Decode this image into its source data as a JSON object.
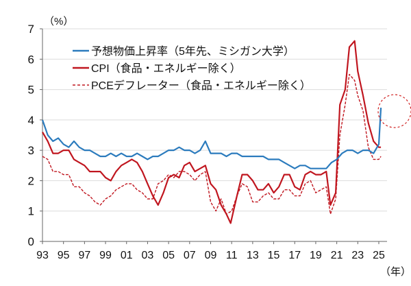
{
  "chart_data": {
    "type": "line",
    "title": "",
    "ylabel": "（%）",
    "xlabel": "（年）",
    "ylim": [
      0,
      7
    ],
    "xlim": [
      1993,
      2025.8
    ],
    "grid": true,
    "legend_position": "top-left",
    "y_ticks": [
      0,
      1,
      2,
      3,
      4,
      5,
      6,
      7
    ],
    "x_ticks": [
      {
        "value": 1993,
        "label": "93"
      },
      {
        "value": 1995,
        "label": "95"
      },
      {
        "value": 1997,
        "label": "97"
      },
      {
        "value": 1999,
        "label": "99"
      },
      {
        "value": 2001,
        "label": "01"
      },
      {
        "value": 2003,
        "label": "03"
      },
      {
        "value": 2005,
        "label": "05"
      },
      {
        "value": 2007,
        "label": "07"
      },
      {
        "value": 2009,
        "label": "09"
      },
      {
        "value": 2011,
        "label": "11"
      },
      {
        "value": 2013,
        "label": "13"
      },
      {
        "value": 2015,
        "label": "15"
      },
      {
        "value": 2017,
        "label": "17"
      },
      {
        "value": 2019,
        "label": "19"
      },
      {
        "value": 2021,
        "label": "21"
      },
      {
        "value": 2023,
        "label": "23"
      },
      {
        "value": 2025,
        "label": "25"
      }
    ],
    "series": [
      {
        "name": "予想物価上昇率（5年先、ミシガン大学）",
        "color": "#2b7bbd",
        "style": "solid",
        "points": [
          [
            1993,
            4.0
          ],
          [
            1993.5,
            3.5
          ],
          [
            1994,
            3.3
          ],
          [
            1994.5,
            3.4
          ],
          [
            1995,
            3.2
          ],
          [
            1995.5,
            3.1
          ],
          [
            1996,
            3.3
          ],
          [
            1996.5,
            3.1
          ],
          [
            1997,
            3.0
          ],
          [
            1997.5,
            3.0
          ],
          [
            1998,
            2.9
          ],
          [
            1998.5,
            2.8
          ],
          [
            1999,
            2.8
          ],
          [
            1999.5,
            2.9
          ],
          [
            2000,
            2.8
          ],
          [
            2000.5,
            2.9
          ],
          [
            2001,
            2.8
          ],
          [
            2001.5,
            2.8
          ],
          [
            2002,
            2.9
          ],
          [
            2002.5,
            2.8
          ],
          [
            2003,
            2.7
          ],
          [
            2003.5,
            2.8
          ],
          [
            2004,
            2.8
          ],
          [
            2004.5,
            2.9
          ],
          [
            2005,
            3.0
          ],
          [
            2005.5,
            3.0
          ],
          [
            2006,
            3.1
          ],
          [
            2006.5,
            3.0
          ],
          [
            2007,
            3.0
          ],
          [
            2007.5,
            2.9
          ],
          [
            2008,
            3.0
          ],
          [
            2008.5,
            3.3
          ],
          [
            2009,
            2.9
          ],
          [
            2009.5,
            2.9
          ],
          [
            2010,
            2.9
          ],
          [
            2010.5,
            2.8
          ],
          [
            2011,
            2.9
          ],
          [
            2011.5,
            2.9
          ],
          [
            2012,
            2.8
          ],
          [
            2012.5,
            2.8
          ],
          [
            2013,
            2.8
          ],
          [
            2013.5,
            2.8
          ],
          [
            2014,
            2.8
          ],
          [
            2014.5,
            2.7
          ],
          [
            2015,
            2.7
          ],
          [
            2015.5,
            2.7
          ],
          [
            2016,
            2.6
          ],
          [
            2016.5,
            2.5
          ],
          [
            2017,
            2.4
          ],
          [
            2017.5,
            2.5
          ],
          [
            2018,
            2.5
          ],
          [
            2018.5,
            2.4
          ],
          [
            2019,
            2.4
          ],
          [
            2019.5,
            2.4
          ],
          [
            2020,
            2.4
          ],
          [
            2020.5,
            2.6
          ],
          [
            2021,
            2.7
          ],
          [
            2021.5,
            2.9
          ],
          [
            2022,
            3.0
          ],
          [
            2022.5,
            3.0
          ],
          [
            2023,
            2.9
          ],
          [
            2023.5,
            3.0
          ],
          [
            2024,
            3.0
          ],
          [
            2024.5,
            2.9
          ],
          [
            2025,
            3.2
          ],
          [
            2025.2,
            4.4
          ]
        ]
      },
      {
        "name": "CPI（食品・エネルギー除く）",
        "color": "#c0161f",
        "style": "solid",
        "points": [
          [
            1993,
            3.6
          ],
          [
            1993.5,
            3.3
          ],
          [
            1994,
            2.9
          ],
          [
            1994.5,
            2.9
          ],
          [
            1995,
            3.0
          ],
          [
            1995.5,
            3.0
          ],
          [
            1996,
            2.7
          ],
          [
            1996.5,
            2.6
          ],
          [
            1997,
            2.5
          ],
          [
            1997.5,
            2.3
          ],
          [
            1998,
            2.3
          ],
          [
            1998.5,
            2.3
          ],
          [
            1999,
            2.1
          ],
          [
            1999.5,
            2.0
          ],
          [
            2000,
            2.3
          ],
          [
            2000.5,
            2.5
          ],
          [
            2001,
            2.6
          ],
          [
            2001.5,
            2.7
          ],
          [
            2002,
            2.6
          ],
          [
            2002.5,
            2.3
          ],
          [
            2003,
            1.9
          ],
          [
            2003.5,
            1.5
          ],
          [
            2004,
            1.2
          ],
          [
            2004.5,
            1.6
          ],
          [
            2005,
            2.1
          ],
          [
            2005.5,
            2.2
          ],
          [
            2006,
            2.1
          ],
          [
            2006.5,
            2.5
          ],
          [
            2007,
            2.6
          ],
          [
            2007.5,
            2.3
          ],
          [
            2008,
            2.4
          ],
          [
            2008.5,
            2.5
          ],
          [
            2009,
            1.9
          ],
          [
            2009.5,
            1.7
          ],
          [
            2010,
            1.2
          ],
          [
            2010.5,
            0.9
          ],
          [
            2010.9,
            0.6
          ],
          [
            2011.5,
            1.5
          ],
          [
            2012,
            2.2
          ],
          [
            2012.5,
            2.2
          ],
          [
            2013,
            2.0
          ],
          [
            2013.5,
            1.7
          ],
          [
            2014,
            1.7
          ],
          [
            2014.5,
            1.9
          ],
          [
            2015,
            1.6
          ],
          [
            2015.5,
            1.8
          ],
          [
            2016,
            2.2
          ],
          [
            2016.5,
            2.2
          ],
          [
            2017,
            1.8
          ],
          [
            2017.5,
            1.7
          ],
          [
            2018,
            2.2
          ],
          [
            2018.5,
            2.3
          ],
          [
            2019,
            2.2
          ],
          [
            2019.5,
            2.2
          ],
          [
            2020,
            2.3
          ],
          [
            2020.4,
            1.2
          ],
          [
            2020.9,
            1.6
          ],
          [
            2021.3,
            4.5
          ],
          [
            2021.8,
            5.0
          ],
          [
            2022.2,
            6.4
          ],
          [
            2022.7,
            6.6
          ],
          [
            2023,
            5.6
          ],
          [
            2023.5,
            4.8
          ],
          [
            2024,
            3.9
          ],
          [
            2024.5,
            3.3
          ],
          [
            2025,
            3.1
          ],
          [
            2025.2,
            3.1
          ]
        ]
      },
      {
        "name": "PCEデフレーター（食品・エネルギー除く）",
        "color": "#c0161f",
        "style": "dashed",
        "points": [
          [
            1993,
            2.8
          ],
          [
            1993.5,
            2.7
          ],
          [
            1994,
            2.3
          ],
          [
            1994.5,
            2.3
          ],
          [
            1995,
            2.2
          ],
          [
            1995.5,
            2.2
          ],
          [
            1996,
            1.8
          ],
          [
            1996.5,
            1.8
          ],
          [
            1997,
            1.6
          ],
          [
            1997.5,
            1.5
          ],
          [
            1998,
            1.3
          ],
          [
            1998.5,
            1.2
          ],
          [
            1999,
            1.4
          ],
          [
            1999.5,
            1.5
          ],
          [
            2000,
            1.7
          ],
          [
            2000.5,
            1.8
          ],
          [
            2001,
            1.9
          ],
          [
            2001.5,
            1.9
          ],
          [
            2002,
            1.7
          ],
          [
            2002.5,
            1.6
          ],
          [
            2003,
            1.4
          ],
          [
            2003.5,
            1.4
          ],
          [
            2004,
            1.9
          ],
          [
            2004.5,
            2.0
          ],
          [
            2005,
            2.2
          ],
          [
            2005.5,
            2.1
          ],
          [
            2006,
            2.3
          ],
          [
            2006.5,
            2.3
          ],
          [
            2007,
            2.2
          ],
          [
            2007.5,
            2.0
          ],
          [
            2008,
            2.2
          ],
          [
            2008.5,
            2.3
          ],
          [
            2009,
            1.3
          ],
          [
            2009.5,
            1.0
          ],
          [
            2010,
            1.4
          ],
          [
            2010.5,
            0.9
          ],
          [
            2011,
            1.0
          ],
          [
            2011.5,
            1.5
          ],
          [
            2012,
            1.9
          ],
          [
            2012.5,
            1.8
          ],
          [
            2013,
            1.3
          ],
          [
            2013.5,
            1.3
          ],
          [
            2014,
            1.5
          ],
          [
            2014.5,
            1.6
          ],
          [
            2015,
            1.4
          ],
          [
            2015.5,
            1.4
          ],
          [
            2016,
            1.7
          ],
          [
            2016.5,
            1.7
          ],
          [
            2017,
            1.5
          ],
          [
            2017.5,
            1.5
          ],
          [
            2018,
            1.9
          ],
          [
            2018.5,
            2.0
          ],
          [
            2019,
            1.6
          ],
          [
            2019.5,
            1.7
          ],
          [
            2020,
            1.8
          ],
          [
            2020.4,
            0.9
          ],
          [
            2020.9,
            1.4
          ],
          [
            2021.3,
            3.5
          ],
          [
            2021.8,
            4.5
          ],
          [
            2022.2,
            5.5
          ],
          [
            2022.7,
            5.3
          ],
          [
            2023,
            4.8
          ],
          [
            2023.5,
            4.3
          ],
          [
            2024,
            3.1
          ],
          [
            2024.5,
            2.7
          ],
          [
            2025,
            2.7
          ],
          [
            2025.2,
            2.8
          ]
        ]
      }
    ]
  }
}
